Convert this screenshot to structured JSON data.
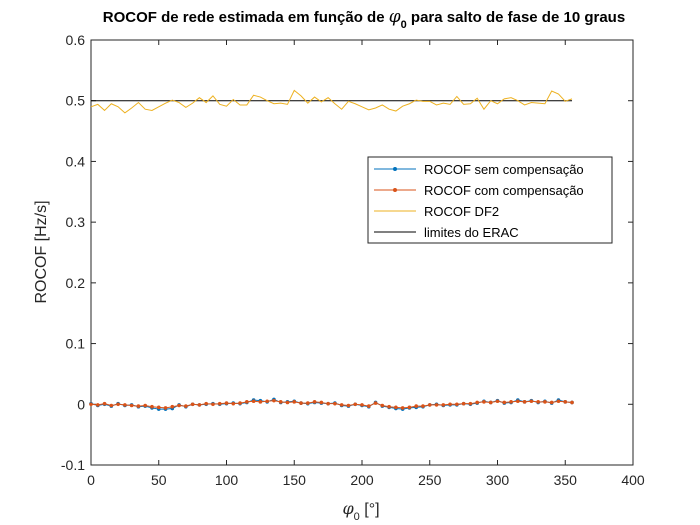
{
  "chart_data": {
    "type": "line",
    "title": "ROCOF de rede estimada em função de φ₀ para salto de fase de 10 graus",
    "title_parts": {
      "before": "ROCOF de rede estimada em função de ",
      "symbol": "φ",
      "subscript": "0",
      "after": " para salto de fase de 10 graus"
    },
    "xlabel_parts": {
      "symbol": "φ",
      "subscript": "0",
      "unit": " [°]"
    },
    "ylabel": "ROCOF [Hz/s]",
    "xlim": [
      0,
      400
    ],
    "ylim": [
      -0.1,
      0.6
    ],
    "xticks": [
      0,
      50,
      100,
      150,
      200,
      250,
      300,
      350,
      400
    ],
    "yticks": [
      -0.1,
      0,
      0.1,
      0.2,
      0.3,
      0.4,
      0.5,
      0.6
    ],
    "grid": false,
    "legend_position": "right-middle",
    "x": [
      0,
      5,
      10,
      15,
      20,
      25,
      30,
      35,
      40,
      45,
      50,
      55,
      60,
      65,
      70,
      75,
      80,
      85,
      90,
      95,
      100,
      105,
      110,
      115,
      120,
      125,
      130,
      135,
      140,
      145,
      150,
      155,
      160,
      165,
      170,
      175,
      180,
      185,
      190,
      195,
      200,
      205,
      210,
      215,
      220,
      225,
      230,
      235,
      240,
      245,
      250,
      255,
      260,
      265,
      270,
      275,
      280,
      285,
      290,
      295,
      300,
      305,
      310,
      315,
      320,
      325,
      330,
      335,
      340,
      345,
      350,
      355
    ],
    "series": [
      {
        "name": "ROCOF sem compensação",
        "color": "#0072bd",
        "marker": "dot",
        "values": [
          0.001,
          -0.002,
          0.0,
          -0.003,
          0.001,
          -0.002,
          -0.001,
          -0.004,
          -0.003,
          -0.006,
          -0.008,
          -0.008,
          -0.007,
          -0.001,
          -0.004,
          0.0,
          -0.001,
          0.0,
          0.001,
          0.0,
          0.001,
          0.002,
          0.001,
          0.003,
          0.007,
          0.006,
          0.004,
          0.008,
          0.003,
          0.004,
          0.005,
          0.002,
          0.001,
          0.003,
          0.002,
          0.001,
          0.002,
          -0.002,
          -0.003,
          0.0,
          -0.002,
          -0.004,
          0.003,
          -0.003,
          -0.005,
          -0.007,
          -0.008,
          -0.006,
          -0.005,
          -0.004,
          -0.001,
          0.0,
          -0.002,
          -0.001,
          -0.001,
          0.001,
          0.0,
          0.002,
          0.005,
          0.003,
          0.006,
          0.002,
          0.003,
          0.007,
          0.004,
          0.006,
          0.003,
          0.005,
          0.002,
          0.007,
          0.004,
          0.003
        ]
      },
      {
        "name": "ROCOF com compensação",
        "color": "#d95319",
        "marker": "dot",
        "values": [
          0.0,
          -0.001,
          0.001,
          -0.002,
          0.0,
          -0.001,
          -0.002,
          -0.003,
          -0.002,
          -0.004,
          -0.005,
          -0.006,
          -0.004,
          -0.002,
          -0.003,
          0.0,
          -0.001,
          0.001,
          0.0,
          0.001,
          0.002,
          0.001,
          0.002,
          0.004,
          0.005,
          0.004,
          0.005,
          0.006,
          0.004,
          0.003,
          0.004,
          0.002,
          0.002,
          0.004,
          0.003,
          0.001,
          0.001,
          -0.001,
          -0.002,
          0.0,
          -0.001,
          -0.003,
          0.002,
          -0.002,
          -0.004,
          -0.005,
          -0.006,
          -0.005,
          -0.003,
          -0.003,
          -0.001,
          -0.001,
          -0.001,
          0.0,
          0.0,
          0.001,
          0.001,
          0.003,
          0.004,
          0.003,
          0.005,
          0.003,
          0.004,
          0.005,
          0.004,
          0.005,
          0.004,
          0.004,
          0.003,
          0.005,
          0.004,
          0.003
        ]
      },
      {
        "name": "ROCOF DF2",
        "color": "#edb120",
        "marker": "none",
        "values": [
          0.49,
          0.494,
          0.484,
          0.495,
          0.49,
          0.48,
          0.488,
          0.497,
          0.486,
          0.484,
          0.49,
          0.496,
          0.501,
          0.497,
          0.489,
          0.496,
          0.505,
          0.497,
          0.508,
          0.494,
          0.491,
          0.502,
          0.493,
          0.493,
          0.509,
          0.506,
          0.5,
          0.495,
          0.496,
          0.494,
          0.517,
          0.508,
          0.496,
          0.506,
          0.498,
          0.505,
          0.495,
          0.486,
          0.499,
          0.495,
          0.49,
          0.485,
          0.488,
          0.493,
          0.486,
          0.483,
          0.491,
          0.495,
          0.501,
          0.499,
          0.499,
          0.493,
          0.496,
          0.494,
          0.507,
          0.494,
          0.495,
          0.504,
          0.486,
          0.5,
          0.495,
          0.503,
          0.505,
          0.5,
          0.493,
          0.497,
          0.496,
          0.495,
          0.516,
          0.511,
          0.499,
          0.503
        ]
      },
      {
        "name": "limites do ERAC",
        "color": "#000000",
        "marker": "none",
        "values": [
          0.5,
          0.5,
          0.5,
          0.5,
          0.5,
          0.5,
          0.5,
          0.5,
          0.5,
          0.5,
          0.5,
          0.5,
          0.5,
          0.5,
          0.5,
          0.5,
          0.5,
          0.5,
          0.5,
          0.5,
          0.5,
          0.5,
          0.5,
          0.5,
          0.5,
          0.5,
          0.5,
          0.5,
          0.5,
          0.5,
          0.5,
          0.5,
          0.5,
          0.5,
          0.5,
          0.5,
          0.5,
          0.5,
          0.5,
          0.5,
          0.5,
          0.5,
          0.5,
          0.5,
          0.5,
          0.5,
          0.5,
          0.5,
          0.5,
          0.5,
          0.5,
          0.5,
          0.5,
          0.5,
          0.5,
          0.5,
          0.5,
          0.5,
          0.5,
          0.5,
          0.5,
          0.5,
          0.5,
          0.5,
          0.5,
          0.5,
          0.5,
          0.5,
          0.5,
          0.5,
          0.5,
          0.5
        ]
      }
    ]
  }
}
